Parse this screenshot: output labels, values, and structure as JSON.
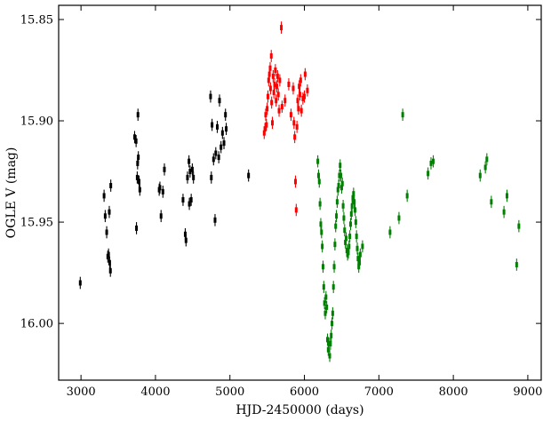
{
  "chart_data": {
    "type": "scatter",
    "title": "",
    "xlabel": "HJD-2450000 (days)",
    "ylabel": "OGLE V (mag)",
    "xlim": [
      2700,
      9180
    ],
    "ylim": [
      16.028,
      15.843
    ],
    "y_inverted": true,
    "grid": false,
    "legend": "none",
    "xticks": [
      3000,
      4000,
      5000,
      6000,
      7000,
      8000,
      9000
    ],
    "xtick_labels": [
      "3000",
      "4000",
      "5000",
      "6000",
      "7000",
      "8000",
      "9000"
    ],
    "yticks": [
      15.85,
      15.9,
      15.95,
      16.0
    ],
    "ytick_labels": [
      "15.85",
      "15.90",
      "15.95",
      "16.00"
    ],
    "series": [
      {
        "color": "#000000",
        "err": 0.003,
        "points": [
          [
            2990,
            15.98
          ],
          [
            3310,
            15.937
          ],
          [
            3325,
            15.947
          ],
          [
            3345,
            15.955
          ],
          [
            3360,
            15.967
          ],
          [
            3370,
            15.966
          ],
          [
            3385,
            15.97
          ],
          [
            3395,
            15.974
          ],
          [
            3380,
            15.945
          ],
          [
            3400,
            15.932
          ],
          [
            3720,
            15.908
          ],
          [
            3740,
            15.91
          ],
          [
            3760,
            15.921
          ],
          [
            3765,
            15.897
          ],
          [
            3770,
            15.918
          ],
          [
            3780,
            15.93
          ],
          [
            3755,
            15.928
          ],
          [
            3790,
            15.934
          ],
          [
            3745,
            15.953
          ],
          [
            4050,
            15.934
          ],
          [
            4060,
            15.933
          ],
          [
            4075,
            15.947
          ],
          [
            4100,
            15.935
          ],
          [
            4120,
            15.924
          ],
          [
            4370,
            15.939
          ],
          [
            4400,
            15.956
          ],
          [
            4410,
            15.959
          ],
          [
            4430,
            15.928
          ],
          [
            4450,
            15.92
          ],
          [
            4455,
            15.941
          ],
          [
            4465,
            15.925
          ],
          [
            4480,
            15.939
          ],
          [
            4495,
            15.924
          ],
          [
            4510,
            15.928
          ],
          [
            4740,
            15.888
          ],
          [
            4750,
            15.928
          ],
          [
            4760,
            15.902
          ],
          [
            4780,
            15.919
          ],
          [
            4800,
            15.949
          ],
          [
            4810,
            15.916
          ],
          [
            4830,
            15.903
          ],
          [
            4850,
            15.918
          ],
          [
            4860,
            15.89
          ],
          [
            4880,
            15.913
          ],
          [
            4900,
            15.906
          ],
          [
            4920,
            15.911
          ],
          [
            4940,
            15.897
          ],
          [
            4950,
            15.904
          ],
          [
            5250,
            15.927
          ]
        ]
      },
      {
        "color": "#ff0000",
        "err": 0.003,
        "points": [
          [
            5460,
            15.906
          ],
          [
            5470,
            15.904
          ],
          [
            5480,
            15.897
          ],
          [
            5490,
            15.902
          ],
          [
            5500,
            15.894
          ],
          [
            5510,
            15.888
          ],
          [
            5520,
            15.88
          ],
          [
            5530,
            15.877
          ],
          [
            5540,
            15.874
          ],
          [
            5545,
            15.884
          ],
          [
            5555,
            15.868
          ],
          [
            5560,
            15.891
          ],
          [
            5570,
            15.901
          ],
          [
            5580,
            15.878
          ],
          [
            5590,
            15.886
          ],
          [
            5600,
            15.882
          ],
          [
            5610,
            15.875
          ],
          [
            5620,
            15.89
          ],
          [
            5630,
            15.883
          ],
          [
            5640,
            15.878
          ],
          [
            5650,
            15.887
          ],
          [
            5660,
            15.895
          ],
          [
            5670,
            15.88
          ],
          [
            5690,
            15.854
          ],
          [
            5700,
            15.893
          ],
          [
            5740,
            15.89
          ],
          [
            5790,
            15.882
          ],
          [
            5820,
            15.897
          ],
          [
            5850,
            15.884
          ],
          [
            5860,
            15.901
          ],
          [
            5870,
            15.908
          ],
          [
            5880,
            15.93
          ],
          [
            5890,
            15.944
          ],
          [
            5900,
            15.903
          ],
          [
            5910,
            15.89
          ],
          [
            5920,
            15.894
          ],
          [
            5930,
            15.883
          ],
          [
            5940,
            15.887
          ],
          [
            5950,
            15.88
          ],
          [
            5960,
            15.895
          ],
          [
            5980,
            15.889
          ],
          [
            6000,
            15.888
          ],
          [
            6010,
            15.877
          ],
          [
            6040,
            15.885
          ]
        ]
      },
      {
        "color": "#008000",
        "err": 0.003,
        "points": [
          [
            6180,
            15.92
          ],
          [
            6190,
            15.927
          ],
          [
            6200,
            15.93
          ],
          [
            6210,
            15.941
          ],
          [
            6220,
            15.951
          ],
          [
            6230,
            15.955
          ],
          [
            6240,
            15.962
          ],
          [
            6250,
            15.972
          ],
          [
            6260,
            15.982
          ],
          [
            6270,
            15.99
          ],
          [
            6280,
            15.995
          ],
          [
            6290,
            15.987
          ],
          [
            6300,
            15.992
          ],
          [
            6310,
            16.008
          ],
          [
            6320,
            16.013
          ],
          [
            6330,
            16.01
          ],
          [
            6340,
            16.016
          ],
          [
            6350,
            16.01
          ],
          [
            6360,
            16.006
          ],
          [
            6370,
            16.0
          ],
          [
            6380,
            15.995
          ],
          [
            6390,
            15.982
          ],
          [
            6400,
            15.972
          ],
          [
            6410,
            15.961
          ],
          [
            6420,
            15.952
          ],
          [
            6430,
            15.947
          ],
          [
            6440,
            15.94
          ],
          [
            6450,
            15.934
          ],
          [
            6460,
            15.932
          ],
          [
            6470,
            15.927
          ],
          [
            6480,
            15.922
          ],
          [
            6490,
            15.927
          ],
          [
            6500,
            15.933
          ],
          [
            6510,
            15.931
          ],
          [
            6520,
            15.942
          ],
          [
            6530,
            15.948
          ],
          [
            6540,
            15.954
          ],
          [
            6550,
            15.96
          ],
          [
            6560,
            15.958
          ],
          [
            6570,
            15.964
          ],
          [
            6580,
            15.966
          ],
          [
            6590,
            15.965
          ],
          [
            6600,
            15.962
          ],
          [
            6610,
            15.957
          ],
          [
            6620,
            15.951
          ],
          [
            6630,
            15.946
          ],
          [
            6640,
            15.942
          ],
          [
            6650,
            15.938
          ],
          [
            6660,
            15.936
          ],
          [
            6670,
            15.94
          ],
          [
            6680,
            15.944
          ],
          [
            6690,
            15.95
          ],
          [
            6700,
            15.957
          ],
          [
            6710,
            15.963
          ],
          [
            6720,
            15.968
          ],
          [
            6730,
            15.972
          ],
          [
            6740,
            15.97
          ],
          [
            6750,
            15.966
          ],
          [
            6780,
            15.962
          ],
          [
            7150,
            15.955
          ],
          [
            7270,
            15.948
          ],
          [
            7320,
            15.897
          ],
          [
            7380,
            15.937
          ],
          [
            7660,
            15.926
          ],
          [
            7700,
            15.921
          ],
          [
            7730,
            15.92
          ],
          [
            8360,
            15.927
          ],
          [
            8430,
            15.923
          ],
          [
            8450,
            15.919
          ],
          [
            8510,
            15.94
          ],
          [
            8680,
            15.945
          ],
          [
            8720,
            15.937
          ],
          [
            8850,
            15.971
          ],
          [
            8880,
            15.952
          ]
        ]
      }
    ]
  }
}
